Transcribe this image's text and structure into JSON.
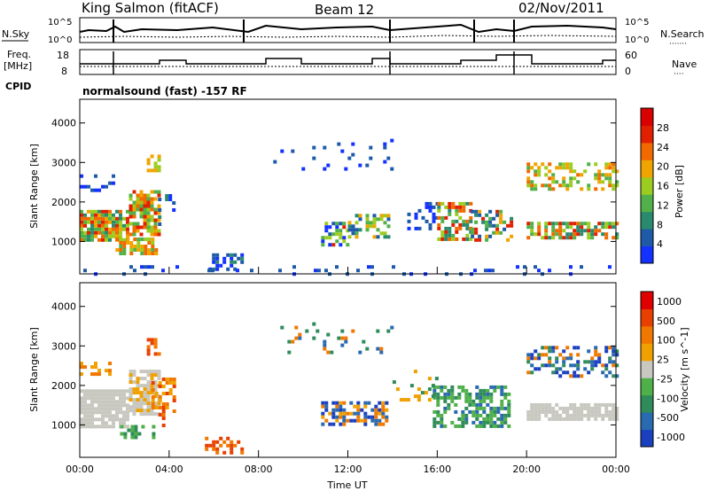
{
  "header": {
    "station": "King Salmon (fitACF)",
    "beam": "Beam 12",
    "date": "02/Nov/2011",
    "mode": "normalsound (fast) -157 RF"
  },
  "left_labels": {
    "nsky": "N.Sky",
    "freq_line1": "Freq.",
    "freq_line2": "[MHz]",
    "cpid": "CPID"
  },
  "right_labels": {
    "nsearch": "N.Search",
    "nsearch_dots": "·······",
    "nave": "Nave",
    "nave_dots": "····"
  },
  "chart_data": [
    {
      "type": "line",
      "name": "noise",
      "yticks": [
        "10^5",
        "10^0"
      ],
      "yticks_right": [
        "10^5",
        "10^0"
      ]
    },
    {
      "type": "line",
      "name": "freq-nave",
      "yticks": [
        "18",
        "8"
      ],
      "yticks_right": [
        "60",
        "0"
      ]
    },
    {
      "type": "heatmap",
      "name": "power",
      "ylabel": "Slant Range [km]",
      "ylim": [
        180,
        4600
      ],
      "yticks": [
        1000,
        2000,
        3000,
        4000
      ],
      "xlim": [
        0,
        24
      ],
      "colorbar": {
        "label": "Power [dB]",
        "ticks": [
          "4",
          "8",
          "12",
          "16",
          "20",
          "24",
          "28"
        ],
        "colors": [
          "#1432ff",
          "#1e5aa8",
          "#2a8a6e",
          "#52b04a",
          "#9ccc20",
          "#f0a400",
          "#f06a00",
          "#e02000",
          "#d80000"
        ]
      }
    },
    {
      "type": "heatmap",
      "name": "velocity",
      "ylabel": "Slant Range [km]",
      "ylim": [
        180,
        4600
      ],
      "yticks": [
        1000,
        2000,
        3000,
        4000
      ],
      "xlim": [
        0,
        24
      ],
      "xlabel": "Time UT",
      "xticks": [
        "00:00",
        "04:00",
        "08:00",
        "12:00",
        "16:00",
        "20:00",
        "00:00"
      ],
      "colorbar": {
        "label": "Velocity [m s^-1]",
        "ticks": [
          "1000",
          "500",
          "100",
          "25",
          "-25",
          "-100",
          "-500",
          "-1000"
        ],
        "colors": [
          "#1a40c0",
          "#2a6ab0",
          "#2f8c5a",
          "#4fb04a",
          "#c8c8c0",
          "#f0a000",
          "#f07800",
          "#e84000",
          "#e00000"
        ]
      }
    }
  ]
}
